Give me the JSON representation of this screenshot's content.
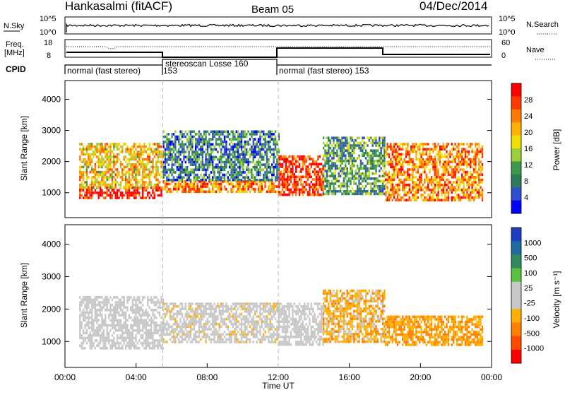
{
  "header": {
    "station": "Hankasalmi (fitACF)",
    "beam": "Beam 05",
    "date": "04/Dec/2014"
  },
  "top_panel": {
    "left_label": "N.Sky",
    "right_label": "N.Search",
    "left_ticks": [
      "10^5",
      "10^0"
    ],
    "right_ticks": [
      "10^5",
      "10^0"
    ]
  },
  "freq_panel": {
    "left_label_1": "Freq.",
    "left_label_2": "[MHz]",
    "right_label": "Nave",
    "left_ticks": [
      "18",
      "8"
    ],
    "right_ticks": [
      "60",
      "0"
    ]
  },
  "cpid_panel": {
    "label": "CPID",
    "segments": [
      {
        "text": "normal (fast stereo)",
        "start_h": 0.0
      },
      {
        "text": "153",
        "start_h": 5.5
      },
      {
        "text": "stereoscan Losse 160",
        "start_h": 5.5
      },
      {
        "text": "normal (fast stereo) 153",
        "start_h": 12.0
      }
    ]
  },
  "power_panel": {
    "ylabel": "Slant Range [km]",
    "yticks": [
      "4000",
      "3000",
      "2000",
      "1000"
    ],
    "colorbar_label": "Power [dB]",
    "colorbar_ticks": [
      "28",
      "24",
      "20",
      "16",
      "12",
      "8",
      "4"
    ],
    "colorbar_colors": [
      "#ff0000",
      "#ff3a00",
      "#ff7a00",
      "#ffb000",
      "#f0e000",
      "#9ccf3a",
      "#3a9a4a",
      "#2f7a5a",
      "#2f4fd0",
      "#0000ff"
    ]
  },
  "velocity_panel": {
    "ylabel": "Slant Range [km]",
    "yticks": [
      "4000",
      "3000",
      "2000",
      "1000"
    ],
    "colorbar_label": "Velocity [m s⁻¹]",
    "colorbar_ticks": [
      "1000",
      "500",
      "100",
      "25",
      "-25",
      "-100",
      "-500",
      "-1000"
    ],
    "colorbar_colors": [
      "#1d3ec0",
      "#1f6aa0",
      "#2f8a60",
      "#5ac040",
      "#c8c8c8",
      "#c8c8c8",
      "#ffb000",
      "#ff8000",
      "#ff4a00",
      "#ff0000"
    ]
  },
  "xaxis": {
    "label": "Time UT",
    "ticks": [
      "00:00",
      "04:00",
      "08:00",
      "12:00",
      "16:00",
      "20:00",
      "00:00"
    ]
  },
  "chart_data": [
    {
      "type": "heatmap",
      "title": "Power",
      "xlabel": "Time UT",
      "ylabel": "Slant Range [km]",
      "xlim_hours": [
        0,
        24
      ],
      "ylim": [
        200,
        4600
      ],
      "colorbar": {
        "label": "Power [dB]",
        "range": [
          0,
          30
        ]
      },
      "regions": [
        {
          "t0": 0.8,
          "t1": 5.5,
          "r0": 800,
          "r1": 1200,
          "value": 28
        },
        {
          "t0": 0.8,
          "t1": 5.5,
          "r0": 1200,
          "r1": 2600,
          "value": 18
        },
        {
          "t0": 5.5,
          "t1": 12.0,
          "r0": 1000,
          "r1": 1400,
          "value": 22
        },
        {
          "t0": 5.5,
          "t1": 12.0,
          "r0": 1400,
          "r1": 3000,
          "value": 8
        },
        {
          "t0": 12.0,
          "t1": 14.5,
          "r0": 900,
          "r1": 2200,
          "value": 26
        },
        {
          "t0": 14.5,
          "t1": 18.0,
          "r0": 1000,
          "r1": 2800,
          "value": 10
        },
        {
          "t0": 18.0,
          "t1": 23.5,
          "r0": 800,
          "r1": 2600,
          "value": 22
        }
      ]
    },
    {
      "type": "heatmap",
      "title": "Velocity",
      "xlabel": "Time UT",
      "ylabel": "Slant Range [km]",
      "xlim_hours": [
        0,
        24
      ],
      "ylim": [
        200,
        4600
      ],
      "colorbar": {
        "label": "Velocity [m s-1]",
        "range": [
          -1000,
          1000
        ]
      },
      "regions": [
        {
          "t0": 0.8,
          "t1": 5.5,
          "r0": 800,
          "r1": 2400,
          "value": 0
        },
        {
          "t0": 5.5,
          "t1": 12.0,
          "r0": 1000,
          "r1": 2200,
          "value": -50
        },
        {
          "t0": 12.0,
          "t1": 14.5,
          "r0": 900,
          "r1": 2200,
          "value": 0
        },
        {
          "t0": 14.5,
          "t1": 18.0,
          "r0": 1000,
          "r1": 2600,
          "value": -300
        },
        {
          "t0": 18.0,
          "t1": 23.5,
          "r0": 900,
          "r1": 1800,
          "value": -400
        }
      ]
    }
  ]
}
